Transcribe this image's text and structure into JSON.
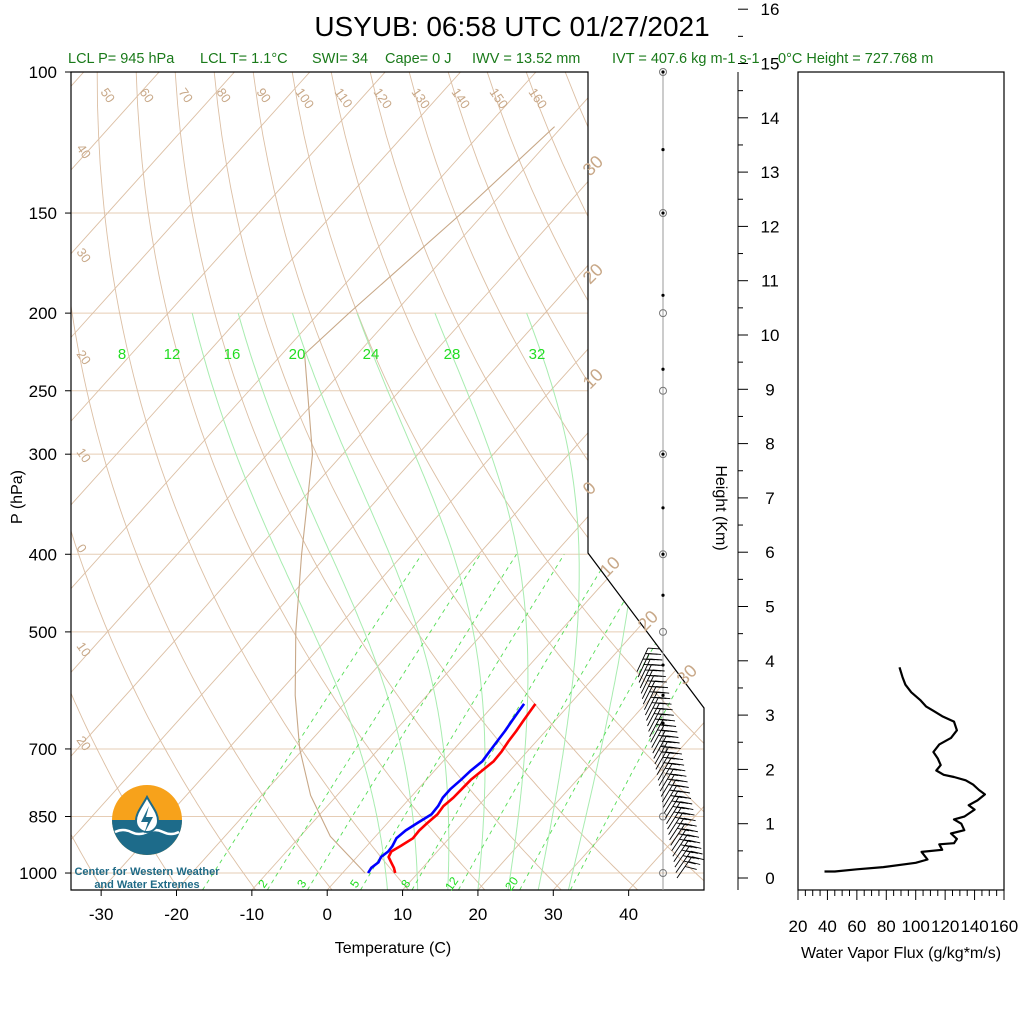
{
  "chart_data": [
    {
      "type": "line",
      "subtype": "skew-t",
      "title": "USYUB: 06:58 UTC 01/27/2021",
      "subtitle": {
        "lcl_p": "LCL P= 945 hPa",
        "lcl_t": "LCL T= 1.1°C",
        "swi": "SWI= 34",
        "cape": "Cape= 0 J",
        "iwv": "IWV = 13.52 mm",
        "ivt": "IVT = 407.6 kg m-1 s-1",
        "zero_height": "0°C Height = 727.768 m"
      },
      "xlabel": "Temperature (C)",
      "ylabel": "P (hPa)",
      "xlim": [
        -34,
        50
      ],
      "ylim": [
        1050,
        100
      ],
      "x_ticks": [
        "-30",
        "-20",
        "-10",
        "0",
        "10",
        "20",
        "30",
        "40"
      ],
      "y_ticks": [
        "100",
        "150",
        "200",
        "250",
        "300",
        "400",
        "500",
        "700",
        "850",
        "1000"
      ],
      "y_tick_values": [
        100,
        150,
        200,
        250,
        300,
        400,
        500,
        700,
        850,
        1000
      ],
      "height_ticks": [
        "0",
        "1",
        "2",
        "3",
        "4",
        "5",
        "6",
        "7",
        "8",
        "9",
        "10",
        "11",
        "12",
        "13",
        "14",
        "15",
        "16"
      ],
      "height_label": "Height (Km)",
      "dry_adiabat_top_labels": [
        "50",
        "60",
        "70",
        "80",
        "90",
        "100",
        "110",
        "120",
        "130",
        "140",
        "150",
        "160"
      ],
      "dry_adiabat_left_labels": [
        "40",
        "30",
        "20",
        "10",
        "0",
        "10",
        "20"
      ],
      "right_isotherm_labels": [
        "30",
        "20",
        "10",
        "0",
        "10",
        "20",
        "30"
      ],
      "moist_adiabat_labels": [
        "8",
        "12",
        "16",
        "20",
        "24",
        "28",
        "32"
      ],
      "mixing_ratio_labels": [
        "2",
        "3",
        "5",
        "8",
        "12",
        "20"
      ],
      "series": [
        {
          "color": "#ff0000",
          "points": [
            [
              7.0,
              1000
            ],
            [
              6.2,
              985
            ],
            [
              5.2,
              970
            ],
            [
              4.2,
              955
            ],
            [
              3.9,
              940
            ],
            [
              4.5,
              925
            ],
            [
              5.2,
              905
            ],
            [
              5.1,
              885
            ],
            [
              5.3,
              865
            ],
            [
              5.6,
              845
            ],
            [
              5.4,
              825
            ],
            [
              5.7,
              805
            ],
            [
              5.8,
              785
            ],
            [
              5.9,
              765
            ],
            [
              6.3,
              745
            ],
            [
              6.7,
              725
            ],
            [
              6.6,
              705
            ],
            [
              6.3,
              685
            ],
            [
              6.1,
              665
            ],
            [
              5.8,
              645
            ],
            [
              5.6,
              630
            ],
            [
              5.4,
              615
            ]
          ]
        },
        {
          "color": "#0000ff",
          "points": [
            [
              3.4,
              1000
            ],
            [
              3.2,
              985
            ],
            [
              3.5,
              970
            ],
            [
              3.2,
              955
            ],
            [
              3.5,
              940
            ],
            [
              3.4,
              925
            ],
            [
              3.0,
              905
            ],
            [
              3.3,
              885
            ],
            [
              4.0,
              865
            ],
            [
              4.8,
              845
            ],
            [
              4.7,
              825
            ],
            [
              4.3,
              805
            ],
            [
              4.3,
              785
            ],
            [
              4.6,
              765
            ],
            [
              4.8,
              745
            ],
            [
              5.2,
              725
            ],
            [
              5.0,
              705
            ],
            [
              4.8,
              685
            ],
            [
              4.6,
              665
            ],
            [
              4.3,
              645
            ],
            [
              4.1,
              630
            ],
            [
              3.9,
              615
            ]
          ]
        },
        {
          "color": "#c8a888",
          "points": [
            [
              3.0,
              1000
            ],
            [
              -6.0,
              900
            ],
            [
              -13.5,
              800
            ],
            [
              -20.5,
              700
            ],
            [
              -27.5,
              600
            ],
            [
              -35.0,
              500
            ],
            [
              -43.5,
              400
            ],
            [
              -54.0,
              300
            ],
            [
              -67.0,
              225
            ],
            [
              -66.0,
              200
            ],
            [
              -63.0,
              150
            ],
            [
              -61.0,
              117
            ]
          ]
        }
      ],
      "wind_levels_km": [
        0.0,
        0.1,
        0.2,
        0.3,
        0.4,
        0.5,
        0.6,
        0.7,
        0.8,
        0.9,
        1.0,
        1.1,
        1.2,
        1.3,
        1.4,
        1.5,
        1.6,
        1.7,
        1.8,
        1.9,
        2.0,
        2.1,
        2.2,
        2.3,
        2.4,
        2.5,
        2.6,
        2.7,
        2.8,
        2.9,
        3.0,
        3.1,
        3.2,
        3.3,
        3.4,
        3.5,
        3.6,
        3.7,
        3.8
      ]
    },
    {
      "type": "line",
      "xlabel": "Water Vapor Flux (g/kg*m/s)",
      "ylabel": "",
      "xlim": [
        20,
        160
      ],
      "ylim": [
        -0.3,
        16.3
      ],
      "x_ticks": [
        "20",
        "40",
        "60",
        "80",
        "100",
        "120",
        "140",
        "160"
      ],
      "series": [
        {
          "color": "#000000",
          "points": [
            [
              38,
              0.12
            ],
            [
              45,
              0.12
            ],
            [
              60,
              0.16
            ],
            [
              78,
              0.2
            ],
            [
              100,
              0.28
            ],
            [
              108,
              0.34
            ],
            [
              104,
              0.48
            ],
            [
              118,
              0.52
            ],
            [
              116,
              0.62
            ],
            [
              126,
              0.64
            ],
            [
              128,
              0.72
            ],
            [
              124,
              0.82
            ],
            [
              133,
              0.88
            ],
            [
              131,
              1.0
            ],
            [
              126,
              1.08
            ],
            [
              133,
              1.13
            ],
            [
              140,
              1.26
            ],
            [
              136,
              1.34
            ],
            [
              142,
              1.43
            ],
            [
              147,
              1.54
            ],
            [
              143,
              1.62
            ],
            [
              139,
              1.72
            ],
            [
              134,
              1.8
            ],
            [
              126,
              1.86
            ],
            [
              119,
              1.9
            ],
            [
              114,
              1.98
            ],
            [
              117,
              2.08
            ],
            [
              115,
              2.2
            ],
            [
              112,
              2.32
            ],
            [
              116,
              2.46
            ],
            [
              124,
              2.58
            ],
            [
              128,
              2.72
            ],
            [
              126,
              2.88
            ],
            [
              118,
              2.98
            ],
            [
              112,
              3.08
            ],
            [
              107,
              3.16
            ],
            [
              103,
              3.28
            ],
            [
              97,
              3.42
            ],
            [
              93,
              3.56
            ],
            [
              91,
              3.7
            ],
            [
              89,
              3.88
            ]
          ]
        }
      ]
    }
  ],
  "logo": {
    "line1": "Center for Western Weather",
    "line2": "and Water Extremes"
  }
}
